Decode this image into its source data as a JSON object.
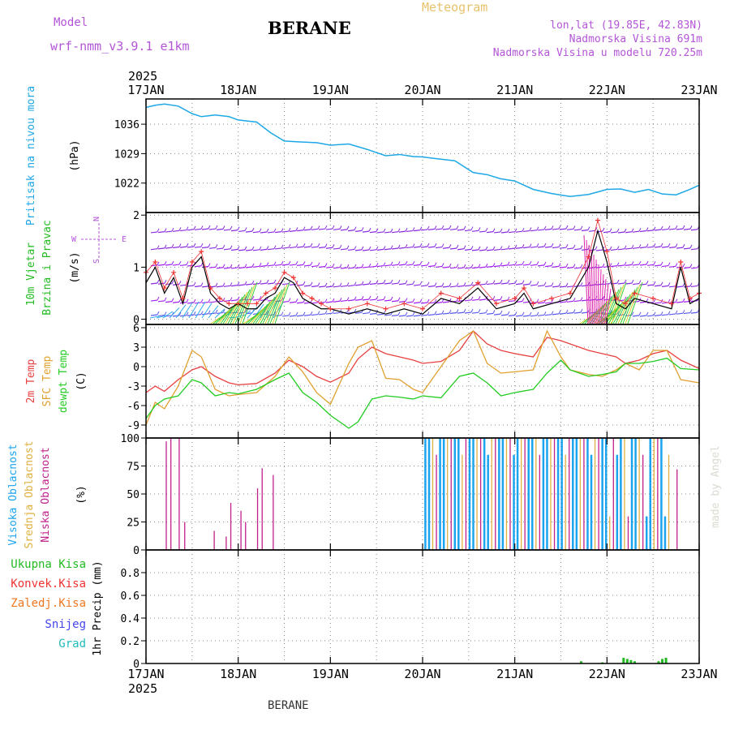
{
  "header": {
    "model_label": "Model",
    "model_name": "wrf-nmm_v3.9.1 e1km",
    "station": "BERANE",
    "meteogram": "Meteogram",
    "lonlat": "lon,lat (19.85E, 42.83N)",
    "elev": "Nadmorska Visina 691m",
    "elev_model": "Nadmorska Visina u modelu 720.25m",
    "year_top": "2025",
    "year_bottom": "2025",
    "footer_station": "BERANE",
    "credit": "made by Angel"
  },
  "colors": {
    "pressure": "#1ea8e6",
    "temp2m": "#e84040",
    "sfc_temp": "#e0a030",
    "dewpt": "#22cc22",
    "high_cloud": "#1aa3ee",
    "mid_cloud": "#e0b040",
    "low_cloud": "#c0208a",
    "precip_total": "#22bb22",
    "wind_label": "#22bb22",
    "grid": "#888888",
    "frame": "#000000"
  },
  "chart_data": [
    {
      "type": "line",
      "panel": "pressure",
      "ylabel_left": "Pritisak na nivou mora",
      "ylabel_unit": "(hPa)",
      "ylim": [
        1015,
        1042
      ],
      "yticks": [
        "1036",
        "1029",
        "1022"
      ],
      "x_unit": "days since 17JAN 00UTC",
      "x": [
        0,
        0.1,
        0.2,
        0.35,
        0.5,
        0.6,
        0.75,
        0.9,
        1.0,
        1.2,
        1.35,
        1.5,
        1.65,
        1.85,
        2.0,
        2.2,
        2.4,
        2.6,
        2.75,
        2.9,
        3.0,
        3.15,
        3.35,
        3.55,
        3.7,
        3.85,
        4.0,
        4.2,
        4.4,
        4.6,
        4.8,
        5.0,
        5.15,
        5.3,
        5.45,
        5.6,
        5.75,
        5.9,
        6.0
      ],
      "y": [
        1040,
        1040.5,
        1040.8,
        1040.3,
        1038.5,
        1037.8,
        1038.2,
        1037.8,
        1037,
        1036.5,
        1034,
        1032,
        1031.8,
        1031.6,
        1031,
        1031.3,
        1030,
        1028.5,
        1028.8,
        1028.3,
        1028.2,
        1027.8,
        1027.3,
        1024.5,
        1024,
        1023,
        1022.5,
        1020.5,
        1019.5,
        1018.8,
        1019.3,
        1020.5,
        1020.6,
        1019.8,
        1020.5,
        1019.4,
        1019.2,
        1020.5,
        1021.5
      ]
    },
    {
      "type": "line",
      "panel": "wind",
      "ylabel_left": [
        "10m Vjetar",
        "Brzina i Pravac"
      ],
      "ylabel_unit": "(m/s)",
      "compass": {
        "north": "N",
        "west": "W",
        "east": "E",
        "south": "S"
      },
      "ylim": [
        -0.1,
        2.05
      ],
      "yticks": [
        "2",
        "1",
        "0"
      ],
      "x": [
        0,
        0.1,
        0.2,
        0.3,
        0.4,
        0.5,
        0.6,
        0.7,
        0.8,
        0.9,
        1.0,
        1.1,
        1.2,
        1.3,
        1.4,
        1.5,
        1.6,
        1.7,
        1.8,
        1.9,
        2.0,
        2.2,
        2.4,
        2.6,
        2.8,
        3.0,
        3.2,
        3.4,
        3.6,
        3.8,
        4.0,
        4.1,
        4.2,
        4.4,
        4.6,
        4.8,
        4.9,
        5.0,
        5.1,
        5.2,
        5.3,
        5.5,
        5.7,
        5.8,
        5.9,
        6.0
      ],
      "speed": [
        0.7,
        1.0,
        0.5,
        0.8,
        0.3,
        1.0,
        1.2,
        0.5,
        0.3,
        0.2,
        0.3,
        0.2,
        0.2,
        0.4,
        0.5,
        0.8,
        0.7,
        0.4,
        0.3,
        0.2,
        0.2,
        0.1,
        0.2,
        0.1,
        0.2,
        0.1,
        0.4,
        0.3,
        0.6,
        0.2,
        0.3,
        0.5,
        0.2,
        0.3,
        0.4,
        1.0,
        1.7,
        1.1,
        0.3,
        0.2,
        0.4,
        0.3,
        0.2,
        1.0,
        0.3,
        0.4
      ],
      "gust": [
        0.9,
        1.1,
        0.6,
        0.9,
        0.4,
        1.1,
        1.3,
        0.6,
        0.4,
        0.3,
        0.3,
        0.3,
        0.3,
        0.5,
        0.6,
        0.9,
        0.8,
        0.5,
        0.4,
        0.3,
        0.2,
        0.2,
        0.3,
        0.2,
        0.3,
        0.2,
        0.5,
        0.4,
        0.7,
        0.3,
        0.4,
        0.6,
        0.3,
        0.4,
        0.5,
        1.2,
        1.9,
        1.3,
        0.4,
        0.3,
        0.5,
        0.4,
        0.3,
        1.1,
        0.4,
        0.5
      ]
    },
    {
      "type": "line",
      "panel": "temperature",
      "ylabel_left": [
        "2m Temp",
        "SFC Temp",
        "dewpt Temp"
      ],
      "ylabel_unit": "(C)",
      "ylim": [
        -11,
        6.5
      ],
      "yticks": [
        "6",
        "3",
        "0",
        "-3",
        "-6",
        "-9"
      ],
      "x": [
        0,
        0.1,
        0.2,
        0.35,
        0.5,
        0.6,
        0.75,
        0.9,
        1.0,
        1.2,
        1.4,
        1.55,
        1.7,
        1.85,
        2.0,
        2.2,
        2.3,
        2.45,
        2.6,
        2.75,
        2.9,
        3.0,
        3.2,
        3.4,
        3.55,
        3.7,
        3.85,
        4.0,
        4.2,
        4.35,
        4.5,
        4.6,
        4.8,
        4.95,
        5.1,
        5.2,
        5.35,
        5.5,
        5.65,
        5.8,
        6.0
      ],
      "series": [
        {
          "name": "2m Temp",
          "values": [
            -4,
            -3,
            -3.8,
            -2,
            -0.5,
            0,
            -1.5,
            -2.5,
            -2.8,
            -2.6,
            -1,
            1,
            0,
            -1.5,
            -2.4,
            -1,
            1.2,
            3,
            2,
            1.5,
            1,
            0.5,
            0.8,
            2.5,
            5.5,
            3.5,
            2.5,
            2,
            1.5,
            4.5,
            4,
            3.5,
            2.5,
            2,
            1.5,
            0.5,
            1,
            2,
            2.5,
            1,
            -0.3
          ]
        },
        {
          "name": "SFC Temp",
          "values": [
            -9,
            -5.5,
            -6.5,
            -3,
            2.5,
            1.5,
            -3.5,
            -4.5,
            -4.3,
            -4,
            -1.5,
            1.5,
            -0.8,
            -4,
            -5.8,
            0.5,
            3,
            4,
            -1.8,
            -2,
            -3.5,
            -4,
            0,
            4,
            5.5,
            0.5,
            -1,
            -0.8,
            -0.5,
            5.5,
            1.5,
            -0.5,
            -1.2,
            -1.5,
            -0.5,
            0.5,
            -0.5,
            2.5,
            2.5,
            -2,
            -2.5
          ]
        },
        {
          "name": "dewpt Temp",
          "values": [
            -8,
            -6,
            -5,
            -4.5,
            -2,
            -2.5,
            -4.5,
            -4,
            -4.2,
            -3.5,
            -2,
            -1,
            -4,
            -5.5,
            -7.5,
            -9.5,
            -8.5,
            -5,
            -4.5,
            -4.7,
            -5,
            -4.5,
            -4.8,
            -1.5,
            -1,
            -2.5,
            -4.5,
            -4,
            -3.5,
            -1,
            1,
            -0.5,
            -1.5,
            -1.2,
            -0.8,
            0.5,
            0.5,
            0.8,
            1.3,
            -0.3,
            -0.5
          ]
        }
      ]
    },
    {
      "type": "bar",
      "panel": "cloud",
      "ylabel_left": [
        "Visoka Oblacnost",
        "Srednja Oblacnost",
        "Niska Oblacnost"
      ],
      "ylabel_unit": "(%)",
      "ylim": [
        0,
        100
      ],
      "yticks": [
        "100",
        "75",
        "50",
        "25",
        "0"
      ],
      "low_bars": [
        [
          0.22,
          97
        ],
        [
          0.27,
          100
        ],
        [
          0.36,
          100
        ],
        [
          0.42,
          25
        ],
        [
          0.74,
          17
        ],
        [
          0.87,
          12
        ],
        [
          0.92,
          42
        ],
        [
          1.03,
          35
        ],
        [
          1.08,
          25
        ],
        [
          1.21,
          55
        ],
        [
          1.26,
          73
        ],
        [
          1.38,
          67
        ],
        [
          5.76,
          72
        ]
      ],
      "high_start": 3.03,
      "high_end": 5.7,
      "high_value": 100
    },
    {
      "type": "bar",
      "panel": "precip",
      "ylabel_left": [
        "Ukupna Kisa",
        "Konvek.Kisa",
        "Zaledj.Kisa",
        "Snijeg",
        "Grad"
      ],
      "ylabel_unit": "1hr Precip (mm)",
      "ylim": [
        0,
        1
      ],
      "yticks": [
        "0.8",
        "0.6",
        "0.4",
        "0.2",
        "0"
      ],
      "bars": [
        [
          4.72,
          0.02
        ],
        [
          4.95,
          0.01
        ],
        [
          5.18,
          0.05
        ],
        [
          5.22,
          0.04
        ],
        [
          5.26,
          0.03
        ],
        [
          5.3,
          0.02
        ],
        [
          5.56,
          0.02
        ],
        [
          5.6,
          0.04
        ],
        [
          5.64,
          0.05
        ]
      ]
    }
  ],
  "x_axis": {
    "labels": [
      "17JAN",
      "18JAN",
      "19JAN",
      "20JAN",
      "21JAN",
      "22JAN",
      "23JAN"
    ]
  }
}
